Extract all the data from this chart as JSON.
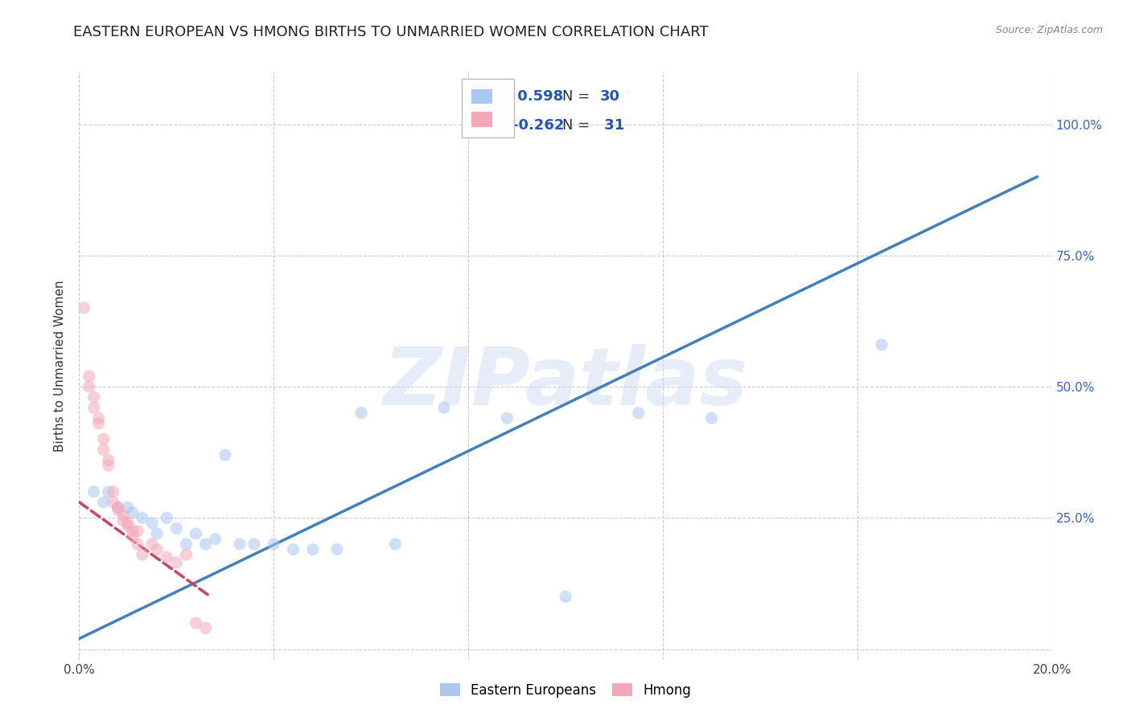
{
  "title": "EASTERN EUROPEAN VS HMONG BIRTHS TO UNMARRIED WOMEN CORRELATION CHART",
  "source": "Source: ZipAtlas.com",
  "ylabel": "Births to Unmarried Women",
  "xlim": [
    0.0,
    0.2
  ],
  "ylim": [
    -0.02,
    1.1
  ],
  "xticks": [
    0.0,
    0.04,
    0.08,
    0.12,
    0.16,
    0.2
  ],
  "xticklabels": [
    "0.0%",
    "",
    "",
    "",
    "",
    "20.0%"
  ],
  "yticks": [
    0.0,
    0.25,
    0.5,
    0.75,
    1.0
  ],
  "yticklabels_right": [
    "",
    "25.0%",
    "50.0%",
    "75.0%",
    "100.0%"
  ],
  "background_color": "#ffffff",
  "grid_color": "#cccccc",
  "blue_color": "#A8C8F0",
  "pink_color": "#F4A8B8",
  "blue_line_color": "#4080C0",
  "pink_line_color": "#D04060",
  "legend_R_blue": "0.598",
  "legend_N_blue": "30",
  "legend_R_pink": "-0.262",
  "legend_N_pink": "31",
  "blue_scatter_x": [
    0.003,
    0.005,
    0.006,
    0.008,
    0.01,
    0.011,
    0.013,
    0.015,
    0.016,
    0.018,
    0.02,
    0.022,
    0.024,
    0.026,
    0.028,
    0.03,
    0.033,
    0.036,
    0.04,
    0.044,
    0.048,
    0.053,
    0.058,
    0.065,
    0.075,
    0.088,
    0.1,
    0.115,
    0.13,
    0.165
  ],
  "blue_scatter_y": [
    0.3,
    0.28,
    0.3,
    0.27,
    0.27,
    0.26,
    0.25,
    0.24,
    0.22,
    0.25,
    0.23,
    0.2,
    0.22,
    0.2,
    0.21,
    0.37,
    0.2,
    0.2,
    0.2,
    0.19,
    0.19,
    0.19,
    0.45,
    0.2,
    0.46,
    0.44,
    0.1,
    0.45,
    0.44,
    0.58
  ],
  "pink_scatter_x": [
    0.001,
    0.002,
    0.002,
    0.003,
    0.003,
    0.004,
    0.004,
    0.005,
    0.005,
    0.006,
    0.006,
    0.007,
    0.007,
    0.008,
    0.008,
    0.009,
    0.009,
    0.01,
    0.01,
    0.011,
    0.011,
    0.012,
    0.012,
    0.013,
    0.015,
    0.016,
    0.018,
    0.02,
    0.022,
    0.024,
    0.026
  ],
  "pink_scatter_y": [
    0.65,
    0.5,
    0.52,
    0.46,
    0.48,
    0.43,
    0.44,
    0.38,
    0.4,
    0.35,
    0.36,
    0.3,
    0.28,
    0.27,
    0.265,
    0.255,
    0.245,
    0.235,
    0.24,
    0.225,
    0.215,
    0.225,
    0.2,
    0.18,
    0.2,
    0.19,
    0.175,
    0.165,
    0.18,
    0.05,
    0.04
  ],
  "blue_line_x": [
    0.0,
    0.197
  ],
  "blue_line_y": [
    0.02,
    0.9
  ],
  "pink_line_x": [
    0.0,
    0.027
  ],
  "pink_line_y": [
    0.28,
    0.1
  ],
  "watermark": "ZIPatlas",
  "title_fontsize": 13,
  "axis_label_fontsize": 11,
  "tick_fontsize": 11,
  "legend_fontsize": 13,
  "scatter_size": 120,
  "scatter_alpha": 0.55,
  "line_width": 2.5
}
